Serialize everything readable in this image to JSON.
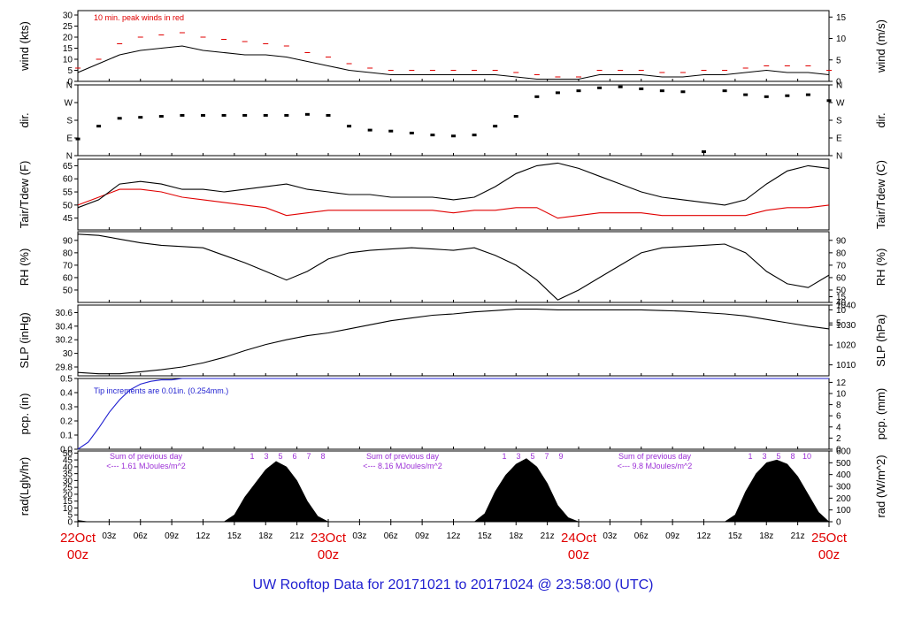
{
  "title": "UW Rooftop Data for 20171021  to  20171024 @ 23:58:00  (UTC)",
  "x_axis": {
    "hour_ticks": [
      "03z",
      "06z",
      "09z",
      "12z",
      "15z",
      "18z",
      "21z",
      "03z",
      "06z",
      "09z",
      "12z",
      "15z",
      "18z",
      "21z",
      "03z",
      "06z",
      "09z",
      "12z",
      "15z",
      "18z",
      "21z"
    ],
    "date_labels": [
      {
        "day": "22Oct",
        "time": "00z"
      },
      {
        "day": "23Oct",
        "time": "00z"
      },
      {
        "day": "24Oct",
        "time": "00z"
      },
      {
        "day": "25Oct",
        "time": "00z"
      }
    ]
  },
  "colors": {
    "black": "#000000",
    "red": "#e00000",
    "blue": "#1f1fd0",
    "purple": "#9b2fd6"
  },
  "chart_data": [
    {
      "type": "line",
      "ylabel_left": "wind (kts)",
      "ylabel_right": "wind (m/s)",
      "ylim": [
        0,
        32
      ],
      "ylim_right": [
        0,
        16.5
      ],
      "yticks_left": [
        0,
        5,
        10,
        15,
        20,
        25,
        30
      ],
      "yticks_right": [
        0,
        5,
        10,
        15
      ],
      "annotation": "10 min. peak winds in red",
      "x_hours": [
        0,
        2,
        4,
        6,
        8,
        10,
        12,
        14,
        16,
        18,
        20,
        22,
        24,
        26,
        28,
        30,
        32,
        34,
        36,
        38,
        40,
        42,
        44,
        46,
        48,
        50,
        52,
        54,
        56,
        58,
        60,
        62,
        64,
        66,
        68,
        70,
        72
      ],
      "series": [
        {
          "color": "#000000",
          "values": [
            4,
            8,
            12,
            14,
            15,
            16,
            14,
            13,
            12,
            12,
            11,
            9,
            7,
            5,
            4,
            3,
            3,
            3,
            3,
            3,
            3,
            2,
            1,
            1,
            1,
            3,
            3,
            3,
            2,
            2,
            3,
            3,
            4,
            5,
            4,
            4,
            3
          ]
        },
        {
          "color": "#e00000",
          "values": [
            6,
            10,
            17,
            20,
            21,
            22,
            20,
            19,
            18,
            17,
            16,
            13,
            11,
            8,
            6,
            5,
            5,
            5,
            5,
            5,
            5,
            4,
            3,
            2,
            2,
            5,
            5,
            5,
            4,
            4,
            5,
            5,
            6,
            7,
            7,
            7,
            5
          ]
        }
      ]
    },
    {
      "type": "scatter",
      "ylabel_left": "dir.",
      "ylabel_right": "dir.",
      "ylim": [
        0,
        360
      ],
      "yticks_left": [
        "N",
        "E",
        "S",
        "W",
        "N"
      ],
      "yticks_right": [
        "N",
        "E",
        "S",
        "W",
        "N"
      ],
      "x_hours": [
        0,
        2,
        4,
        6,
        8,
        10,
        12,
        14,
        16,
        18,
        20,
        22,
        24,
        26,
        28,
        30,
        32,
        34,
        36,
        38,
        40,
        42,
        44,
        46,
        48,
        50,
        52,
        54,
        56,
        58,
        60,
        62,
        64,
        66,
        68,
        70,
        72
      ],
      "values": [
        85,
        150,
        190,
        195,
        200,
        205,
        205,
        205,
        205,
        205,
        205,
        210,
        205,
        150,
        130,
        125,
        115,
        105,
        100,
        105,
        150,
        200,
        300,
        320,
        330,
        345,
        350,
        340,
        330,
        325,
        20,
        330,
        310,
        300,
        305,
        310,
        280
      ]
    },
    {
      "type": "line",
      "ylabel_left": "Tair/Tdew (F)",
      "ylabel_right": "Tair/Tdew (C)",
      "ylim": [
        40.5,
        67.5
      ],
      "yticks_left": [
        45,
        50,
        55,
        60,
        65
      ],
      "yticks_right": [
        5,
        10,
        15
      ],
      "x_hours": [
        0,
        2,
        4,
        6,
        8,
        10,
        12,
        14,
        16,
        18,
        20,
        22,
        24,
        26,
        28,
        30,
        32,
        34,
        36,
        38,
        40,
        42,
        44,
        46,
        48,
        50,
        52,
        54,
        56,
        58,
        60,
        62,
        64,
        66,
        68,
        70,
        72
      ],
      "series": [
        {
          "name": "Tair",
          "color": "#000000",
          "values": [
            49,
            52,
            58,
            59,
            58,
            56,
            56,
            55,
            56,
            57,
            58,
            56,
            55,
            54,
            54,
            53,
            53,
            53,
            52,
            53,
            57,
            62,
            65,
            66,
            64,
            61,
            58,
            55,
            53,
            52,
            51,
            50,
            52,
            58,
            63,
            65,
            64
          ]
        },
        {
          "name": "Tdew",
          "color": "#e00000",
          "values": [
            50,
            53,
            56,
            56,
            55,
            53,
            52,
            51,
            50,
            49,
            46,
            47,
            48,
            48,
            48,
            48,
            48,
            48,
            47,
            48,
            48,
            49,
            49,
            45,
            46,
            47,
            47,
            47,
            46,
            46,
            46,
            46,
            46,
            48,
            49,
            49,
            50
          ]
        }
      ]
    },
    {
      "type": "line",
      "ylabel_left": "RH (%)",
      "ylabel_right": "RH (%)",
      "ylim": [
        40,
        97
      ],
      "yticks_left": [
        50,
        60,
        70,
        80,
        90
      ],
      "yticks_right": [
        40,
        50,
        60,
        70,
        80,
        90
      ],
      "x_hours": [
        0,
        2,
        4,
        6,
        8,
        10,
        12,
        14,
        16,
        18,
        20,
        22,
        24,
        26,
        28,
        30,
        32,
        34,
        36,
        38,
        40,
        42,
        44,
        46,
        48,
        50,
        52,
        54,
        56,
        58,
        60,
        62,
        64,
        66,
        68,
        70,
        72
      ],
      "values": [
        95,
        94,
        91,
        88,
        86,
        85,
        84,
        78,
        72,
        65,
        58,
        65,
        75,
        80,
        82,
        83,
        84,
        83,
        82,
        84,
        78,
        70,
        58,
        42,
        50,
        60,
        70,
        80,
        84,
        85,
        86,
        87,
        80,
        65,
        55,
        52,
        62
      ]
    },
    {
      "type": "line",
      "ylabel_left": "SLP (inHg)",
      "ylabel_right": "SLP (hPa)",
      "ylim": [
        29.67,
        30.71
      ],
      "yticks_left": [
        29.8,
        30.0,
        30.2,
        30.4,
        30.6
      ],
      "ylim_right": [
        1004.5,
        1040
      ],
      "yticks_right": [
        1010,
        1020,
        1030,
        1040
      ],
      "x_hours": [
        0,
        2,
        4,
        6,
        8,
        10,
        12,
        14,
        16,
        18,
        20,
        22,
        24,
        26,
        28,
        30,
        32,
        34,
        36,
        38,
        40,
        42,
        44,
        46,
        48,
        50,
        52,
        54,
        56,
        58,
        60,
        62,
        64,
        66,
        68,
        70,
        72
      ],
      "values": [
        29.72,
        29.7,
        29.7,
        29.73,
        29.76,
        29.8,
        29.86,
        29.94,
        30.04,
        30.13,
        30.2,
        30.26,
        30.3,
        30.36,
        30.42,
        30.48,
        30.52,
        30.56,
        30.58,
        30.61,
        30.63,
        30.65,
        30.65,
        30.64,
        30.64,
        30.64,
        30.64,
        30.64,
        30.63,
        30.62,
        30.6,
        30.58,
        30.55,
        30.5,
        30.45,
        30.4,
        30.36
      ]
    },
    {
      "type": "line",
      "ylabel_left": "pcp. (in)",
      "ylabel_right": "pcp. (mm)",
      "ylim": [
        0,
        0.5
      ],
      "yticks_left": [
        0.0,
        0.1,
        0.2,
        0.3,
        0.4,
        0.5
      ],
      "ylim_right": [
        0,
        12.7
      ],
      "yticks_right": [
        0,
        2,
        4,
        6,
        8,
        10,
        12
      ],
      "annotation": "Tip increments are 0.01in. (0.254mm.)",
      "x_hours": [
        0,
        1,
        2,
        3,
        4,
        5,
        6,
        7,
        8,
        9,
        10,
        72
      ],
      "values": [
        0.0,
        0.05,
        0.15,
        0.26,
        0.35,
        0.42,
        0.46,
        0.48,
        0.49,
        0.49,
        0.5,
        0.5
      ]
    },
    {
      "type": "area",
      "ylabel_left": "rad(Lgly/hr)",
      "ylabel_right": "rad (W/m^2)",
      "ylim": [
        0,
        51.5
      ],
      "yticks_left": [
        0,
        5,
        10,
        15,
        20,
        25,
        30,
        35,
        40,
        45,
        50
      ],
      "ylim_right": [
        0,
        600
      ],
      "yticks_right": [
        0,
        100,
        200,
        300,
        400,
        500,
        600
      ],
      "daily_sums": [
        {
          "label": "Sum of previous day",
          "value": "<--- 1.61 MJoules/m^2"
        },
        {
          "label": "Sum of previous day",
          "value": "<--- 8.16 MJoules/m^2"
        },
        {
          "label": "Sum of previous day",
          "value": "<--- 9.8 MJoules/m^2"
        }
      ],
      "hour_markers": [
        {
          "day": 0,
          "labels": [
            "1",
            "3",
            "5",
            "6",
            "7",
            "8"
          ]
        },
        {
          "day": 1,
          "labels": [
            "1",
            "3",
            "5",
            "7",
            "9"
          ]
        },
        {
          "day": 2,
          "labels": [
            "1",
            "3",
            "5",
            "8",
            "10"
          ]
        }
      ],
      "x_hours": [
        0,
        1,
        2,
        3,
        4,
        14,
        15,
        16,
        17,
        18,
        19,
        20,
        21,
        22,
        23,
        24,
        38,
        39,
        40,
        41,
        42,
        43,
        44,
        45,
        46,
        47,
        48,
        62,
        63,
        64,
        65,
        66,
        67,
        68,
        69,
        70,
        71,
        72
      ],
      "values": [
        1,
        0,
        0,
        0,
        0,
        0,
        5,
        18,
        28,
        38,
        44,
        40,
        30,
        15,
        4,
        0,
        0,
        6,
        22,
        34,
        42,
        46,
        40,
        28,
        12,
        3,
        0,
        0,
        5,
        22,
        35,
        43,
        45,
        42,
        33,
        20,
        7,
        0
      ]
    }
  ]
}
